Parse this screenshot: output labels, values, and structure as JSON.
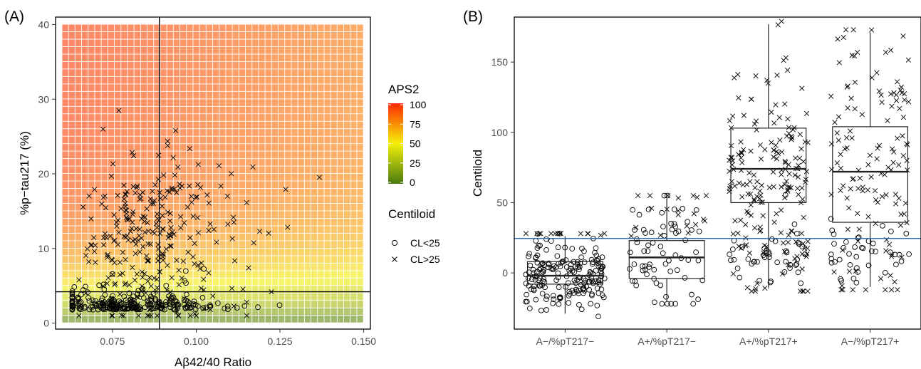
{
  "chart_data": [
    {
      "panel_label": "(A)",
      "type": "scatter",
      "xlabel": "Aβ42/40 Ratio",
      "ylabel": "%p−tau217 (%)",
      "xlim": [
        0.058,
        0.152
      ],
      "ylim": [
        -0.8,
        41
      ],
      "x_ticks": [
        0.075,
        0.1,
        0.125,
        0.15
      ],
      "x_tick_labels": [
        "0.075",
        "0.100",
        "0.125",
        "0.150"
      ],
      "y_ticks": [
        0,
        10,
        20,
        30,
        40
      ],
      "y_tick_labels": [
        "0",
        "10",
        "20",
        "30",
        "40"
      ],
      "reference_lines": {
        "x": 0.089,
        "y": 4.2
      },
      "heatmap": {
        "name": "APS2",
        "x_range": [
          0.06,
          0.15
        ],
        "y_range": [
          0,
          40
        ],
        "value_range": [
          0,
          100
        ],
        "colorbar_ticks": [
          0,
          25,
          50,
          75,
          100
        ],
        "colorbar_tick_labels": [
          "0",
          "25",
          "50",
          "75",
          "100"
        ],
        "colors": [
          "#4a7a0e",
          "#f3f00a",
          "#ff2a00"
        ],
        "opacity": 0.6
      },
      "colorbar_title": "APS2",
      "legend_title": "Centiloid",
      "legend_placement": "right",
      "series": [
        {
          "name": "CL<25",
          "marker": "circle",
          "n": 260,
          "x_range": [
            0.063,
            0.148
          ],
          "y_center": 1.8,
          "y_spread": 1.2
        },
        {
          "name": "CL>25",
          "marker": "cross",
          "n": 300,
          "x_range": [
            0.065,
            0.142
          ],
          "y_center": 10.5,
          "y_spread": 6.5
        }
      ],
      "grid": false
    },
    {
      "panel_label": "(B)",
      "type": "box",
      "xlabel": "",
      "ylabel": "Centiloid",
      "ylim": [
        -40,
        182
      ],
      "y_ticks": [
        0,
        50,
        100,
        150
      ],
      "y_tick_labels": [
        "0",
        "50",
        "100",
        "150"
      ],
      "reference_line_y": 24.5,
      "reference_line_color": "#2e6db4",
      "categories": [
        "A−/%pT217−",
        "A+/%pT217−",
        "A+/%pT217+",
        "A−/%pT217+"
      ],
      "boxes": [
        {
          "q1": -8,
          "median": -2,
          "q3": 8,
          "whisker_low": -29,
          "whisker_high": 26
        },
        {
          "q1": -4,
          "median": 11,
          "q3": 23,
          "whisker_low": -20,
          "whisker_high": 53
        },
        {
          "q1": 50,
          "median": 74,
          "q3": 103,
          "whisker_low": -11,
          "whisker_high": 177
        },
        {
          "q1": 36,
          "median": 72,
          "q3": 104,
          "whisker_low": -10,
          "whisker_high": 171
        }
      ],
      "points": [
        {
          "group": 0,
          "n_circle": 190,
          "n_cross": 14
        },
        {
          "group": 1,
          "n_circle": 70,
          "n_cross": 20
        },
        {
          "group": 2,
          "n_circle": 45,
          "n_cross": 190
        },
        {
          "group": 3,
          "n_circle": 40,
          "n_cross": 130
        }
      ],
      "grid": false
    }
  ]
}
